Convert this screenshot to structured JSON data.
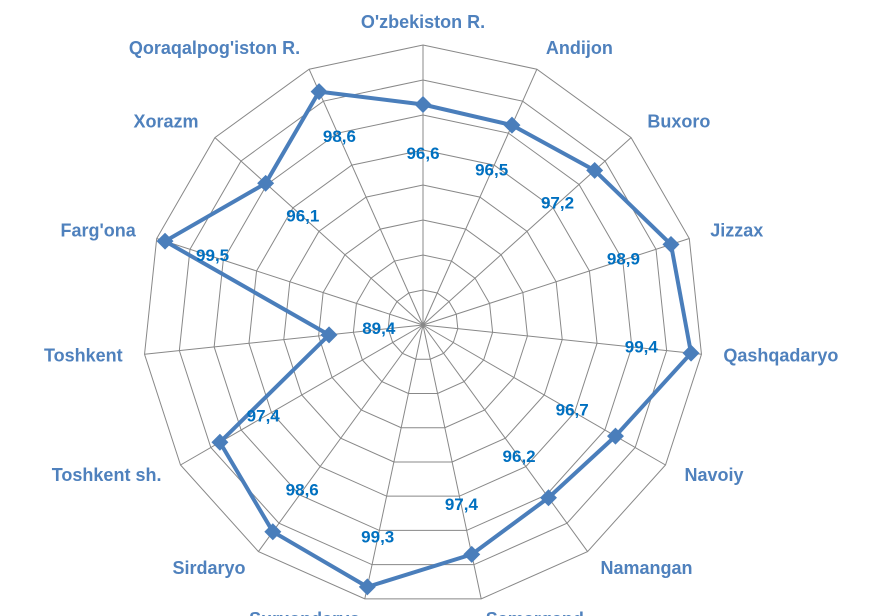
{
  "chart_data": {
    "type": "radar",
    "categories": [
      "O'zbekiston R.",
      "Andijon",
      "Buxoro",
      "Jizzax",
      "Qashqadaryo",
      "Navoiy",
      "Namangan",
      "Samarqand",
      "Surxondaryo",
      "Sirdaryo",
      "Toshkent sh.",
      "Toshkent",
      "Farg'ona",
      "Xorazm",
      "Qoraqalpog'iston R."
    ],
    "values": [
      96.6,
      96.5,
      97.2,
      98.9,
      99.4,
      96.7,
      96.2,
      97.4,
      99.3,
      98.6,
      97.4,
      89.4,
      99.5,
      96.1,
      98.6
    ],
    "value_labels": [
      "96,6",
      "96,5",
      "97,2",
      "98,9",
      "99,4",
      "96,7",
      "96,2",
      "97,4",
      "99,3",
      "98,6",
      "97,4",
      "89,4",
      "99,5",
      "96,1",
      "98,6"
    ],
    "color": "#4a7ebb",
    "ylim": [
      84,
      100
    ],
    "yticks": [
      84,
      86,
      88,
      90,
      92,
      94,
      96,
      98,
      100
    ],
    "grid": true
  }
}
